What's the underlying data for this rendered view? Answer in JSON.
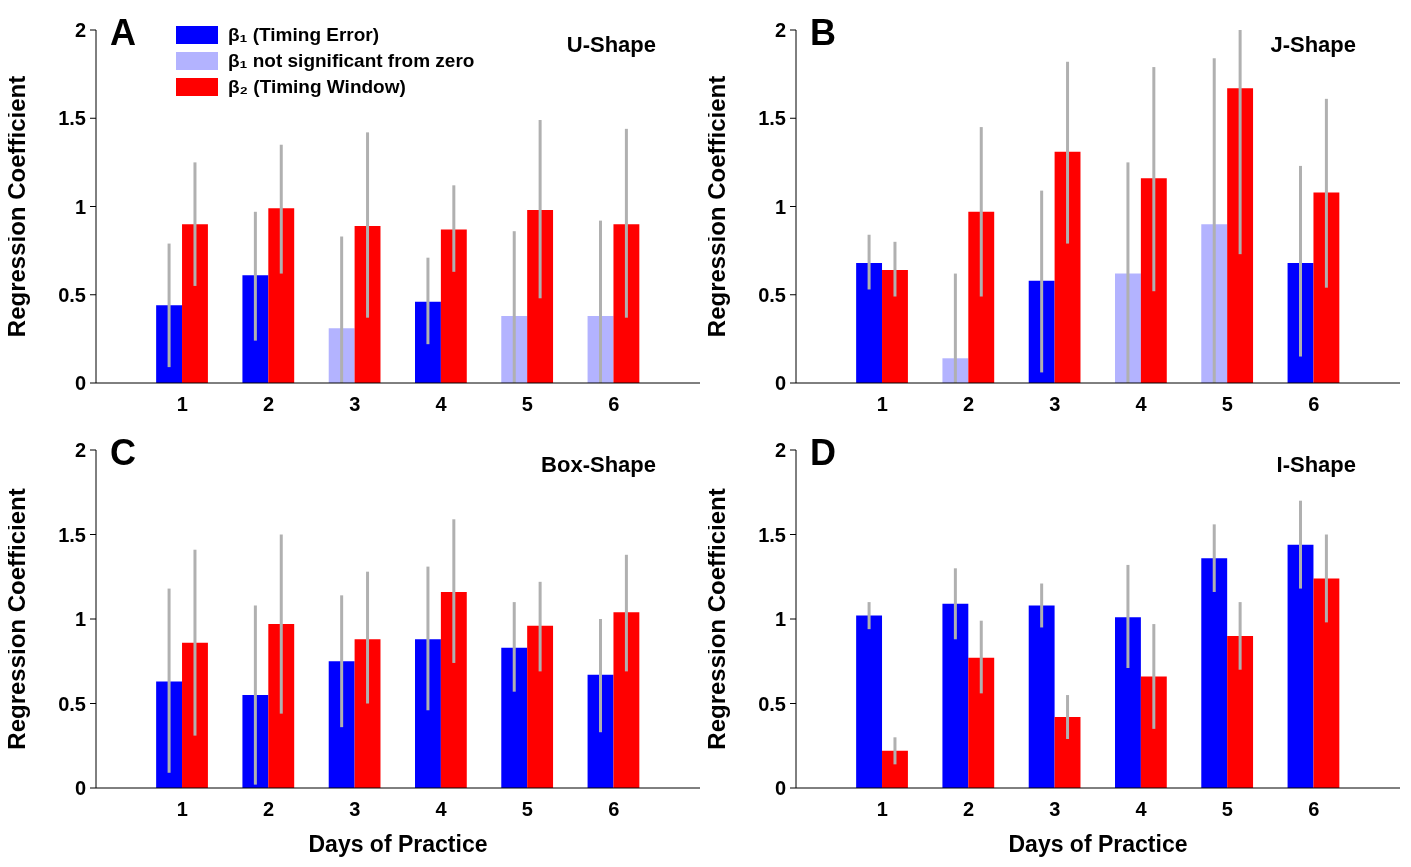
{
  "chart_data": [
    {
      "type": "bar",
      "title": "A",
      "subtitle": "U-Shape",
      "ylabel": "Regression Coefficient",
      "categories": [
        "1",
        "2",
        "3",
        "4",
        "5",
        "6"
      ],
      "ylim": [
        0,
        2
      ],
      "yticks": [
        0,
        0.5,
        1,
        1.5,
        2
      ],
      "legend": "top left",
      "series": [
        {
          "name": "β₁ (Timing Error)",
          "color": "#0000ff",
          "values": [
            0.44,
            0.61,
            null,
            0.46,
            null,
            null
          ],
          "errors": [
            [
              0.09,
              0.79
            ],
            [
              0.24,
              0.97
            ],
            null,
            [
              0.22,
              0.71
            ],
            null,
            null
          ]
        },
        {
          "name": "β₁ not significant from zero",
          "color": "#b3b3ff",
          "values": [
            null,
            null,
            0.31,
            null,
            0.38,
            0.38
          ],
          "errors": [
            null,
            null,
            [
              0,
              0.83
            ],
            null,
            [
              0,
              0.86
            ],
            [
              0,
              0.92
            ]
          ]
        },
        {
          "name": "β₂ (Timing Window)",
          "color": "#ff0000",
          "values": [
            0.9,
            0.99,
            0.89,
            0.87,
            0.98,
            0.9
          ],
          "errors": [
            [
              0.55,
              1.25
            ],
            [
              0.62,
              1.35
            ],
            [
              0.37,
              1.42
            ],
            [
              0.63,
              1.12
            ],
            [
              0.48,
              1.49
            ],
            [
              0.37,
              1.44
            ]
          ]
        }
      ]
    },
    {
      "type": "bar",
      "title": "B",
      "subtitle": "J-Shape",
      "ylabel": "Regression Coefficient",
      "categories": [
        "1",
        "2",
        "3",
        "4",
        "5",
        "6"
      ],
      "ylim": [
        0,
        2
      ],
      "yticks": [
        0,
        0.5,
        1,
        1.5,
        2
      ],
      "series": [
        {
          "color": "#0000ff",
          "values": [
            0.68,
            null,
            0.58,
            null,
            null,
            0.68
          ],
          "errors": [
            [
              0.53,
              0.84
            ],
            null,
            [
              0.06,
              1.09
            ],
            null,
            null,
            [
              0.15,
              1.23
            ]
          ]
        },
        {
          "color": "#b3b3ff",
          "values": [
            null,
            0.14,
            null,
            0.62,
            0.9,
            null
          ],
          "errors": [
            null,
            [
              0,
              0.62
            ],
            null,
            [
              0,
              1.25
            ],
            [
              0,
              1.84
            ],
            null
          ]
        },
        {
          "color": "#ff0000",
          "values": [
            0.64,
            0.97,
            1.31,
            1.16,
            1.67,
            1.08
          ],
          "errors": [
            [
              0.49,
              0.8
            ],
            [
              0.49,
              1.45
            ],
            [
              0.79,
              1.82
            ],
            [
              0.52,
              1.79
            ],
            [
              0.73,
              2.0
            ],
            [
              0.54,
              1.61
            ]
          ]
        }
      ]
    },
    {
      "type": "bar",
      "title": "C",
      "subtitle": "Box-Shape",
      "xlabel": "Days of Practice",
      "ylabel": "Regression Coefficient",
      "categories": [
        "1",
        "2",
        "3",
        "4",
        "5",
        "6"
      ],
      "ylim": [
        0,
        2
      ],
      "yticks": [
        0,
        0.5,
        1,
        1.5,
        2
      ],
      "series": [
        {
          "color": "#0000ff",
          "values": [
            0.63,
            0.55,
            0.75,
            0.88,
            0.83,
            0.67
          ],
          "errors": [
            [
              0.09,
              1.18
            ],
            [
              0.02,
              1.08
            ],
            [
              0.36,
              1.14
            ],
            [
              0.46,
              1.31
            ],
            [
              0.57,
              1.1
            ],
            [
              0.33,
              1.0
            ]
          ]
        },
        {
          "color": "#ff0000",
          "values": [
            0.86,
            0.97,
            0.88,
            1.16,
            0.96,
            1.04
          ],
          "errors": [
            [
              0.31,
              1.41
            ],
            [
              0.44,
              1.5
            ],
            [
              0.5,
              1.28
            ],
            [
              0.74,
              1.59
            ],
            [
              0.69,
              1.22
            ],
            [
              0.69,
              1.38
            ]
          ]
        }
      ]
    },
    {
      "type": "bar",
      "title": "D",
      "subtitle": "I-Shape",
      "xlabel": "Days of Practice",
      "ylabel": "Regression Coefficient",
      "categories": [
        "1",
        "2",
        "3",
        "4",
        "5",
        "6"
      ],
      "ylim": [
        0,
        2
      ],
      "yticks": [
        0,
        0.5,
        1,
        1.5,
        2
      ],
      "series": [
        {
          "color": "#0000ff",
          "values": [
            1.02,
            1.09,
            1.08,
            1.01,
            1.36,
            1.44
          ],
          "errors": [
            [
              0.94,
              1.1
            ],
            [
              0.88,
              1.3
            ],
            [
              0.95,
              1.21
            ],
            [
              0.71,
              1.32
            ],
            [
              1.16,
              1.56
            ],
            [
              1.18,
              1.7
            ]
          ]
        },
        {
          "color": "#ff0000",
          "values": [
            0.22,
            0.77,
            0.42,
            0.66,
            0.9,
            1.24
          ],
          "errors": [
            [
              0.14,
              0.3
            ],
            [
              0.56,
              0.99
            ],
            [
              0.29,
              0.55
            ],
            [
              0.35,
              0.97
            ],
            [
              0.7,
              1.1
            ],
            [
              0.98,
              1.5
            ]
          ]
        }
      ]
    }
  ]
}
